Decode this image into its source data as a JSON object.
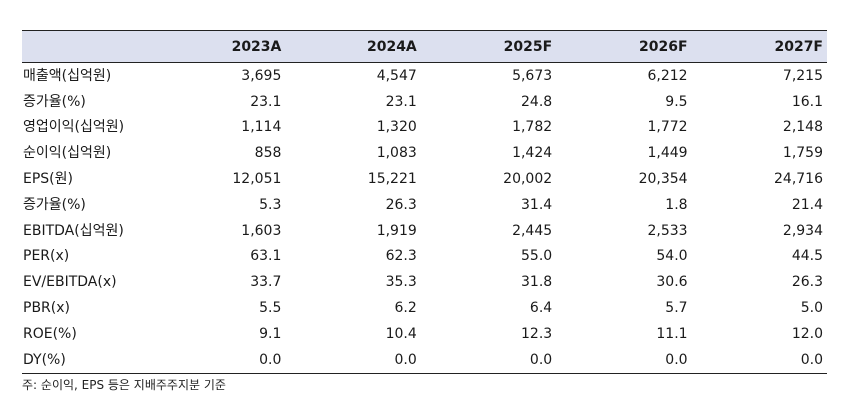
{
  "table": {
    "columns": [
      "2023A",
      "2024A",
      "2025F",
      "2026F",
      "2027F"
    ],
    "rows": [
      {
        "label": "매출액(십억원)",
        "values": [
          "3,695",
          "4,547",
          "5,673",
          "6,212",
          "7,215"
        ]
      },
      {
        "label": "증가율(%)",
        "values": [
          "23.1",
          "23.1",
          "24.8",
          "9.5",
          "16.1"
        ]
      },
      {
        "label": "영업이익(십억원)",
        "values": [
          "1,114",
          "1,320",
          "1,782",
          "1,772",
          "2,148"
        ]
      },
      {
        "label": "순이익(십억원)",
        "values": [
          "858",
          "1,083",
          "1,424",
          "1,449",
          "1,759"
        ]
      },
      {
        "label": "EPS(원)",
        "values": [
          "12,051",
          "15,221",
          "20,002",
          "20,354",
          "24,716"
        ]
      },
      {
        "label": "증가율(%)",
        "values": [
          "5.3",
          "26.3",
          "31.4",
          "1.8",
          "21.4"
        ]
      },
      {
        "label": "EBITDA(십억원)",
        "values": [
          "1,603",
          "1,919",
          "2,445",
          "2,533",
          "2,934"
        ]
      },
      {
        "label": "PER(x)",
        "values": [
          "63.1",
          "62.3",
          "55.0",
          "54.0",
          "44.5"
        ]
      },
      {
        "label": "EV/EBITDA(x)",
        "values": [
          "33.7",
          "35.3",
          "31.8",
          "30.6",
          "26.3"
        ]
      },
      {
        "label": "PBR(x)",
        "values": [
          "5.5",
          "6.2",
          "6.4",
          "5.7",
          "5.0"
        ]
      },
      {
        "label": "ROE(%)",
        "values": [
          "9.1",
          "10.4",
          "12.3",
          "11.1",
          "12.0"
        ]
      },
      {
        "label": "DY(%)",
        "values": [
          "0.0",
          "0.0",
          "0.0",
          "0.0",
          "0.0"
        ]
      }
    ]
  },
  "footnote": "주: 순이익, EPS 등은 지배주주지분 기준",
  "colors": {
    "header_background": "#dce0ef",
    "rule": "#222222"
  }
}
